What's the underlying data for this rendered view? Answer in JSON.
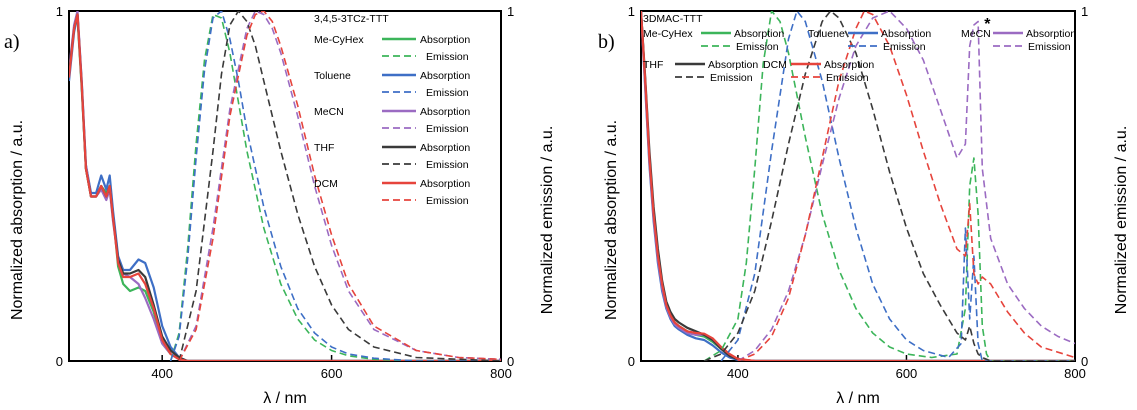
{
  "chart_data": [
    {
      "type": "line",
      "panel_label": "a)",
      "xlabel": "λ / nm",
      "ylabel_left": "Normalized absorption / a.u.",
      "ylabel_right": "Normalized emission / a.u.",
      "xlim": [
        290,
        800
      ],
      "ylim": [
        0,
        1.0
      ],
      "x_ticks": [
        "400",
        "600",
        "800"
      ],
      "x_tick_values": [
        400,
        600,
        800
      ],
      "y_ticks_left": [
        "0",
        "1"
      ],
      "y_ticks_right": [
        "0",
        "1"
      ],
      "legend_title": "3,4,5-3TCz-TTT",
      "legend_layout": "stacked",
      "legend": [
        {
          "solvent": "Me-CyHex",
          "absorption": "Absorption",
          "emission": "Emission",
          "color": "#3cb55a"
        },
        {
          "solvent": "Toluene",
          "absorption": "Absorption",
          "emission": "Emission",
          "color": "#3e6fc6"
        },
        {
          "solvent": "MeCN",
          "absorption": "Absorption",
          "emission": "Emission",
          "color": "#9b6bc2"
        },
        {
          "solvent": "THF",
          "absorption": "Absorption",
          "emission": "Emission",
          "color": "#3a3a3a"
        },
        {
          "solvent": "DCM",
          "absorption": "Absorption",
          "emission": "Emission",
          "color": "#e6443c"
        }
      ],
      "absorption_x": [
        290,
        296,
        300,
        305,
        310,
        316,
        322,
        328,
        334,
        338,
        342,
        348,
        354,
        362,
        372,
        380,
        390,
        400,
        410,
        420,
        430,
        440,
        460,
        500,
        600,
        800
      ],
      "absorption_series": [
        {
          "solvent": "Me-CyHex",
          "values": [
            0.82,
            0.95,
            0.98,
            0.78,
            0.55,
            0.47,
            0.47,
            0.5,
            0.48,
            0.5,
            0.42,
            0.27,
            0.22,
            0.2,
            0.21,
            0.2,
            0.14,
            0.05,
            0.02,
            0.005,
            0,
            0,
            0,
            0,
            0,
            0
          ]
        },
        {
          "solvent": "Toluene",
          "values": [
            0.8,
            0.94,
            0.99,
            0.8,
            0.56,
            0.48,
            0.48,
            0.53,
            0.49,
            0.53,
            0.43,
            0.3,
            0.26,
            0.26,
            0.29,
            0.28,
            0.21,
            0.1,
            0.04,
            0.01,
            0,
            0,
            0,
            0,
            0,
            0
          ]
        },
        {
          "solvent": "MeCN",
          "values": [
            0.83,
            0.96,
            1.0,
            0.8,
            0.56,
            0.47,
            0.47,
            0.49,
            0.46,
            0.49,
            0.4,
            0.29,
            0.25,
            0.24,
            0.22,
            0.18,
            0.12,
            0.05,
            0.02,
            0.005,
            0,
            0,
            0,
            0,
            0,
            0
          ]
        },
        {
          "solvent": "THF",
          "values": [
            0.82,
            0.95,
            0.99,
            0.79,
            0.55,
            0.47,
            0.47,
            0.5,
            0.47,
            0.5,
            0.41,
            0.29,
            0.25,
            0.25,
            0.26,
            0.24,
            0.16,
            0.07,
            0.03,
            0.01,
            0,
            0,
            0,
            0,
            0,
            0
          ]
        },
        {
          "solvent": "DCM",
          "values": [
            0.81,
            0.95,
            0.99,
            0.79,
            0.55,
            0.47,
            0.47,
            0.5,
            0.47,
            0.5,
            0.41,
            0.28,
            0.24,
            0.24,
            0.25,
            0.22,
            0.15,
            0.06,
            0.02,
            0.005,
            0,
            0,
            0,
            0,
            0,
            0
          ]
        }
      ],
      "emission_series": [
        {
          "solvent": "Me-CyHex",
          "x": [
            410,
            420,
            430,
            440,
            450,
            460,
            470,
            480,
            490,
            500,
            520,
            540,
            560,
            580,
            600,
            620,
            650,
            700,
            800
          ],
          "values": [
            0,
            0.08,
            0.32,
            0.62,
            0.86,
            0.99,
            0.98,
            0.88,
            0.74,
            0.6,
            0.38,
            0.22,
            0.12,
            0.06,
            0.03,
            0.015,
            0.005,
            0,
            0
          ]
        },
        {
          "solvent": "Toluene",
          "x": [
            410,
            420,
            430,
            440,
            450,
            460,
            470,
            480,
            490,
            500,
            520,
            540,
            560,
            580,
            600,
            620,
            650,
            700,
            800
          ],
          "values": [
            0,
            0.07,
            0.29,
            0.58,
            0.83,
            0.98,
            1.0,
            0.92,
            0.8,
            0.66,
            0.44,
            0.27,
            0.15,
            0.08,
            0.04,
            0.02,
            0.008,
            0,
            0
          ]
        },
        {
          "solvent": "MeCN",
          "x": [
            420,
            440,
            460,
            480,
            500,
            510,
            520,
            530,
            540,
            560,
            580,
            600,
            620,
            650,
            700,
            750,
            800
          ],
          "values": [
            0,
            0.1,
            0.38,
            0.72,
            0.95,
            1.0,
            0.99,
            0.95,
            0.88,
            0.7,
            0.5,
            0.33,
            0.2,
            0.09,
            0.03,
            0.01,
            0.005
          ]
        },
        {
          "solvent": "THF",
          "x": [
            420,
            440,
            460,
            470,
            480,
            490,
            500,
            510,
            520,
            540,
            560,
            580,
            600,
            620,
            650,
            700,
            800
          ],
          "values": [
            0,
            0.2,
            0.6,
            0.82,
            0.96,
            1.0,
            0.97,
            0.9,
            0.8,
            0.6,
            0.42,
            0.27,
            0.16,
            0.09,
            0.04,
            0.01,
            0
          ]
        },
        {
          "solvent": "DCM",
          "x": [
            420,
            440,
            460,
            480,
            500,
            510,
            520,
            530,
            540,
            560,
            580,
            600,
            620,
            650,
            700,
            750,
            800
          ],
          "values": [
            0,
            0.09,
            0.35,
            0.7,
            0.93,
            0.99,
            1.0,
            0.97,
            0.9,
            0.73,
            0.53,
            0.36,
            0.22,
            0.1,
            0.03,
            0.01,
            0.005
          ]
        }
      ]
    },
    {
      "type": "line",
      "panel_label": "b)",
      "xlabel": "λ / nm",
      "ylabel_left": "Normalized absorption / a.u.",
      "ylabel_right": "Normalized emission / a.u.",
      "xlim": [
        285,
        800
      ],
      "ylim": [
        0,
        1.0
      ],
      "x_ticks": [
        "400",
        "600",
        "800"
      ],
      "x_tick_values": [
        400,
        600,
        800
      ],
      "y_ticks_left": [
        "0",
        "1"
      ],
      "y_ticks_right": [
        "0",
        "1"
      ],
      "legend_title": "3DMAC-TTT",
      "legend_layout": "inline",
      "legend": [
        {
          "solvent": "Me-CyHex",
          "absorption": "Absorption",
          "emission": "Emission",
          "color": "#3cb55a"
        },
        {
          "solvent": "Toluene",
          "absorption": "Absorption",
          "emission": "Emission",
          "color": "#3e6fc6"
        },
        {
          "solvent": "MeCN",
          "absorption": "Absorption",
          "emission": "Emission",
          "color": "#9b6bc2"
        },
        {
          "solvent": "THF",
          "absorption": "Absorption",
          "emission": "Emission",
          "color": "#3a3a3a"
        },
        {
          "solvent": "DCM",
          "absorption": "Absorption",
          "emission": "Emission",
          "color": "#e6443c"
        }
      ],
      "annotation": "*",
      "annotation_at": [
        690,
        0.96
      ],
      "absorption_x": [
        285,
        290,
        295,
        300,
        305,
        310,
        315,
        320,
        325,
        330,
        340,
        350,
        360,
        370,
        380,
        390,
        400,
        420,
        450,
        800
      ],
      "absorption_series": [
        {
          "solvent": "Me-CyHex",
          "values": [
            1.0,
            0.8,
            0.58,
            0.42,
            0.3,
            0.22,
            0.16,
            0.13,
            0.11,
            0.1,
            0.085,
            0.075,
            0.07,
            0.055,
            0.035,
            0.015,
            0.005,
            0,
            0,
            0
          ]
        },
        {
          "solvent": "Toluene",
          "values": [
            1.0,
            0.78,
            0.56,
            0.4,
            0.28,
            0.2,
            0.15,
            0.12,
            0.1,
            0.09,
            0.075,
            0.065,
            0.06,
            0.045,
            0.025,
            0.01,
            0.003,
            0,
            0,
            0
          ]
        },
        {
          "solvent": "MeCN",
          "values": [
            1.0,
            0.79,
            0.57,
            0.41,
            0.29,
            0.21,
            0.155,
            0.125,
            0.105,
            0.095,
            0.08,
            0.075,
            0.075,
            0.06,
            0.035,
            0.015,
            0.005,
            0,
            0,
            0
          ]
        },
        {
          "solvent": "THF",
          "values": [
            1.0,
            0.81,
            0.6,
            0.44,
            0.32,
            0.23,
            0.17,
            0.14,
            0.12,
            0.11,
            0.095,
            0.085,
            0.075,
            0.06,
            0.035,
            0.015,
            0.005,
            0,
            0,
            0
          ]
        },
        {
          "solvent": "DCM",
          "values": [
            1.0,
            0.8,
            0.58,
            0.42,
            0.3,
            0.22,
            0.16,
            0.13,
            0.11,
            0.1,
            0.085,
            0.08,
            0.078,
            0.065,
            0.04,
            0.02,
            0.006,
            0,
            0,
            0
          ]
        }
      ],
      "emission_series": [
        {
          "solvent": "Me-CyHex",
          "x": [
            360,
            380,
            400,
            410,
            420,
            430,
            440,
            450,
            460,
            480,
            500,
            520,
            540,
            560,
            580,
            600,
            630,
            660,
            670,
            675,
            680,
            685,
            690,
            695,
            700,
            800
          ],
          "values": [
            0,
            0.03,
            0.12,
            0.28,
            0.55,
            0.85,
            1.0,
            0.97,
            0.88,
            0.64,
            0.42,
            0.26,
            0.15,
            0.08,
            0.04,
            0.02,
            0.01,
            0.02,
            0.15,
            0.5,
            0.58,
            0.42,
            0.1,
            0.02,
            0,
            0
          ]
        },
        {
          "solvent": "Toluene",
          "x": [
            380,
            400,
            420,
            440,
            460,
            470,
            480,
            500,
            520,
            540,
            560,
            580,
            600,
            620,
            650,
            665,
            670,
            675,
            680,
            685,
            690,
            800
          ],
          "values": [
            0,
            0.06,
            0.25,
            0.6,
            0.92,
            1.0,
            0.97,
            0.8,
            0.58,
            0.38,
            0.22,
            0.12,
            0.06,
            0.03,
            0.01,
            0.05,
            0.38,
            0.12,
            0.3,
            0.05,
            0,
            0
          ]
        },
        {
          "solvent": "MeCN",
          "x": [
            400,
            420,
            440,
            460,
            480,
            500,
            520,
            540,
            560,
            580,
            600,
            620,
            640,
            660,
            670,
            675,
            680,
            685,
            690,
            700,
            720,
            740,
            760,
            780,
            800
          ],
          "values": [
            0,
            0.03,
            0.09,
            0.2,
            0.36,
            0.56,
            0.75,
            0.9,
            0.98,
            1.0,
            0.95,
            0.86,
            0.72,
            0.58,
            0.62,
            0.9,
            0.96,
            0.97,
            0.55,
            0.35,
            0.22,
            0.15,
            0.1,
            0.07,
            0.05
          ]
        },
        {
          "solvent": "THF",
          "x": [
            360,
            380,
            400,
            420,
            440,
            460,
            480,
            500,
            510,
            520,
            540,
            560,
            580,
            600,
            620,
            640,
            660,
            670,
            675,
            680,
            685,
            690,
            700,
            800
          ],
          "values": [
            0,
            0.02,
            0.08,
            0.2,
            0.4,
            0.62,
            0.82,
            0.97,
            1.0,
            0.98,
            0.88,
            0.72,
            0.54,
            0.38,
            0.25,
            0.16,
            0.08,
            0.06,
            0.1,
            0.05,
            0.02,
            0.01,
            0,
            0
          ]
        },
        {
          "solvent": "DCM",
          "x": [
            400,
            420,
            440,
            460,
            480,
            500,
            520,
            540,
            550,
            560,
            580,
            600,
            620,
            640,
            660,
            670,
            675,
            680,
            685,
            690,
            700,
            720,
            740,
            760,
            800
          ],
          "values": [
            0,
            0.02,
            0.07,
            0.18,
            0.36,
            0.58,
            0.8,
            0.95,
            1.0,
            0.99,
            0.9,
            0.76,
            0.6,
            0.45,
            0.32,
            0.3,
            0.45,
            0.25,
            0.22,
            0.24,
            0.22,
            0.14,
            0.08,
            0.04,
            0.01
          ]
        }
      ]
    }
  ]
}
